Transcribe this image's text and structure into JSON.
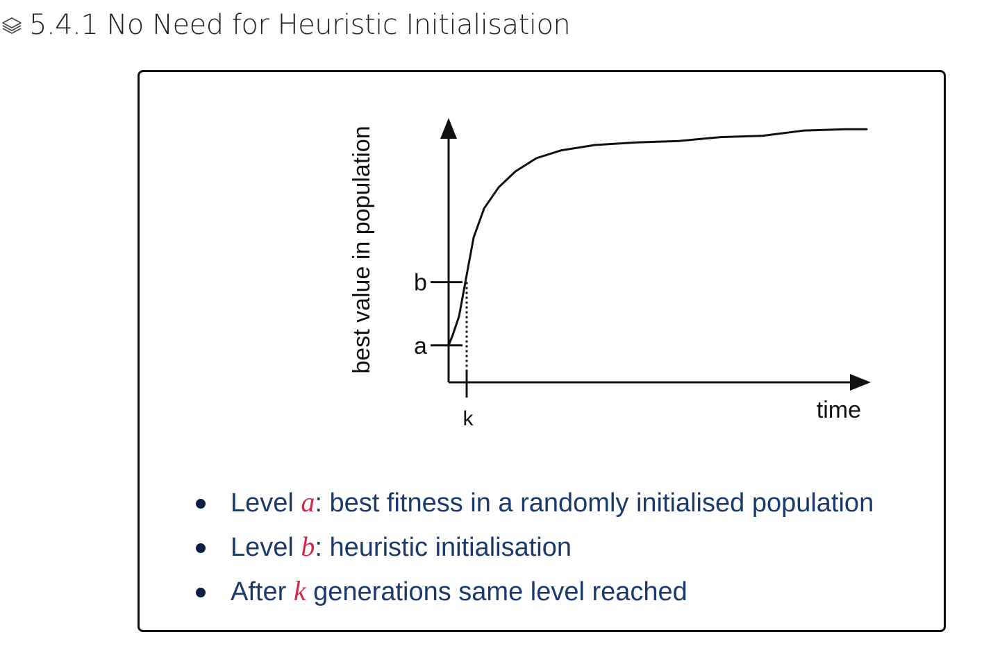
{
  "heading": {
    "icon": "layers-icon",
    "text": "5.4.1 No Need for Heuristic Initialisation"
  },
  "chart_data": {
    "type": "line",
    "title": "",
    "xlabel": "time",
    "ylabel": "best value in population",
    "y_ticks": [
      {
        "label": "a",
        "value": 0.14
      },
      {
        "label": "b",
        "value": 0.38
      }
    ],
    "x_ticks": [
      {
        "label": "k",
        "value": 0.04
      }
    ],
    "xlim": [
      0,
      1
    ],
    "ylim": [
      0,
      1
    ],
    "grid": false,
    "legend": "none",
    "series": [
      {
        "x": [
          0.0,
          0.01,
          0.025,
          0.04,
          0.06,
          0.085,
          0.12,
          0.16,
          0.21,
          0.27,
          0.35,
          0.45,
          0.55,
          0.65,
          0.75,
          0.85,
          0.95,
          1.0
        ],
        "y": [
          0.14,
          0.18,
          0.25,
          0.38,
          0.55,
          0.66,
          0.74,
          0.8,
          0.85,
          0.88,
          0.9,
          0.91,
          0.915,
          0.93,
          0.935,
          0.955,
          0.96,
          0.96
        ]
      }
    ],
    "annotations": [
      {
        "type": "dotted-drop-line",
        "x": 0.04,
        "from_y": 0,
        "to_y": 0.38
      }
    ]
  },
  "bullets": [
    {
      "before": "Level ",
      "var": "a",
      "after": ": best fitness in a randomly initialised population"
    },
    {
      "before": "Level ",
      "var": "b",
      "after": ": heuristic initialisation"
    },
    {
      "before": "After ",
      "var": "k",
      "after": " generations same level reached"
    }
  ],
  "colors": {
    "text_primary": "#1f1f1f",
    "bullet_text": "#1b3a6b",
    "variable_accent": "#d0284a",
    "axis": "#111111"
  }
}
